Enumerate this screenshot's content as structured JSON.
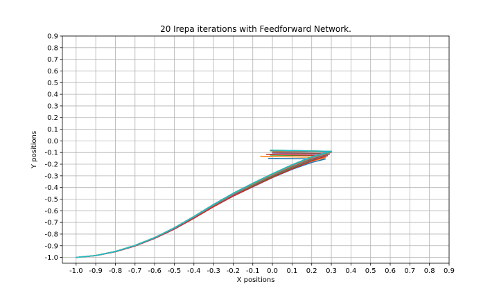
{
  "chart_data": {
    "type": "line",
    "title": "20 Irepa iterations with Feedforward Network.",
    "xlabel": "X positions",
    "ylabel": "Y positions",
    "xlim": [
      -1.07,
      0.9
    ],
    "ylim": [
      -1.05,
      0.9
    ],
    "x_ticks": [
      "-1.0",
      "-0.9",
      "-0.8",
      "-0.7",
      "-0.6",
      "-0.5",
      "-0.4",
      "-0.3",
      "-0.2",
      "-0.1",
      "0.0",
      "0.1",
      "0.2",
      "0.3",
      "0.4",
      "0.5",
      "0.6",
      "0.7",
      "0.8",
      "0.9"
    ],
    "y_ticks": [
      "-1.0",
      "-0.9",
      "-0.8",
      "-0.7",
      "-0.6",
      "-0.5",
      "-0.4",
      "-0.3",
      "-0.2",
      "-0.1",
      "0.0",
      "0.1",
      "0.2",
      "0.3",
      "0.4",
      "0.5",
      "0.6",
      "0.7",
      "0.8",
      "0.9"
    ],
    "grid": true,
    "legend": false,
    "series": [
      {
        "color": "#1f77b4",
        "x": [
          -1.0,
          -0.9,
          -0.8,
          -0.7,
          -0.6,
          -0.5,
          -0.4,
          -0.3,
          -0.2,
          -0.1,
          0.0,
          0.1,
          0.2,
          0.27,
          -0.02
        ],
        "y": [
          -1.0,
          -0.985,
          -0.952,
          -0.903,
          -0.838,
          -0.758,
          -0.665,
          -0.565,
          -0.475,
          -0.395,
          -0.315,
          -0.245,
          -0.185,
          -0.155,
          -0.15
        ]
      },
      {
        "color": "#ff7f0e",
        "x": [
          -1.0,
          -0.9,
          -0.8,
          -0.7,
          -0.6,
          -0.5,
          -0.4,
          -0.3,
          -0.2,
          -0.1,
          0.0,
          0.1,
          0.2,
          0.27,
          -0.06
        ],
        "y": [
          -1.0,
          -0.984,
          -0.951,
          -0.902,
          -0.836,
          -0.755,
          -0.662,
          -0.563,
          -0.471,
          -0.39,
          -0.31,
          -0.238,
          -0.175,
          -0.143,
          -0.132
        ]
      },
      {
        "color": "#2ca02c",
        "x": [
          -1.0,
          -0.9,
          -0.8,
          -0.7,
          -0.6,
          -0.5,
          -0.4,
          -0.3,
          -0.2,
          -0.1,
          0.0,
          0.1,
          0.2,
          0.28,
          -0.01
        ],
        "y": [
          -1.0,
          -0.984,
          -0.95,
          -0.9,
          -0.834,
          -0.753,
          -0.659,
          -0.56,
          -0.468,
          -0.385,
          -0.305,
          -0.232,
          -0.166,
          -0.128,
          -0.122
        ]
      },
      {
        "color": "#d62728",
        "x": [
          -1.0,
          -0.9,
          -0.8,
          -0.7,
          -0.6,
          -0.5,
          -0.4,
          -0.3,
          -0.2,
          -0.1,
          0.0,
          0.1,
          0.2,
          0.28,
          -0.03
        ],
        "y": [
          -1.0,
          -0.985,
          -0.952,
          -0.902,
          -0.837,
          -0.757,
          -0.664,
          -0.566,
          -0.474,
          -0.393,
          -0.313,
          -0.24,
          -0.172,
          -0.126,
          -0.115
        ]
      },
      {
        "color": "#9467bd",
        "x": [
          -1.0,
          -0.9,
          -0.8,
          -0.7,
          -0.6,
          -0.5,
          -0.4,
          -0.3,
          -0.2,
          -0.1,
          0.0,
          0.1,
          0.2,
          0.29,
          0.0
        ],
        "y": [
          -1.0,
          -0.984,
          -0.95,
          -0.899,
          -0.833,
          -0.751,
          -0.656,
          -0.556,
          -0.463,
          -0.379,
          -0.298,
          -0.225,
          -0.158,
          -0.115,
          -0.105
        ]
      },
      {
        "color": "#8c564b",
        "x": [
          -1.0,
          -0.9,
          -0.8,
          -0.7,
          -0.6,
          -0.5,
          -0.4,
          -0.3,
          -0.2,
          -0.1,
          0.0,
          0.1,
          0.2,
          0.29,
          0.0
        ],
        "y": [
          -1.0,
          -0.984,
          -0.95,
          -0.899,
          -0.832,
          -0.75,
          -0.655,
          -0.555,
          -0.461,
          -0.377,
          -0.296,
          -0.222,
          -0.155,
          -0.111,
          -0.1
        ]
      },
      {
        "color": "#e377c2",
        "x": [
          -1.0,
          -0.9,
          -0.8,
          -0.7,
          -0.6,
          -0.5,
          -0.4,
          -0.3,
          -0.2,
          -0.1,
          0.0,
          0.1,
          0.2,
          0.3,
          0.0
        ],
        "y": [
          -1.0,
          -0.984,
          -0.949,
          -0.898,
          -0.831,
          -0.748,
          -0.652,
          -0.551,
          -0.457,
          -0.372,
          -0.29,
          -0.215,
          -0.147,
          -0.1,
          -0.09
        ]
      },
      {
        "color": "#7f7f7f",
        "x": [
          -1.0,
          -0.9,
          -0.8,
          -0.7,
          -0.6,
          -0.5,
          -0.4,
          -0.3,
          -0.2,
          -0.1,
          0.0,
          0.1,
          0.2,
          0.3,
          0.0
        ],
        "y": [
          -1.0,
          -0.984,
          -0.949,
          -0.898,
          -0.831,
          -0.748,
          -0.652,
          -0.551,
          -0.456,
          -0.371,
          -0.289,
          -0.213,
          -0.145,
          -0.098,
          -0.088
        ]
      },
      {
        "color": "#bcbd22",
        "x": [
          -1.0,
          -0.9,
          -0.8,
          -0.7,
          -0.6,
          -0.5,
          -0.4,
          -0.3,
          -0.2,
          -0.1,
          0.0,
          0.1,
          0.2,
          0.3,
          -0.01
        ],
        "y": [
          -1.0,
          -0.984,
          -0.949,
          -0.897,
          -0.83,
          -0.747,
          -0.651,
          -0.549,
          -0.454,
          -0.369,
          -0.287,
          -0.211,
          -0.143,
          -0.096,
          -0.086
        ]
      },
      {
        "color": "#17becf",
        "x": [
          -1.0,
          -0.9,
          -0.8,
          -0.7,
          -0.6,
          -0.5,
          -0.4,
          -0.3,
          -0.2,
          -0.1,
          0.0,
          0.1,
          0.2,
          0.3,
          -0.01
        ],
        "y": [
          -1.0,
          -0.984,
          -0.949,
          -0.897,
          -0.83,
          -0.746,
          -0.65,
          -0.548,
          -0.453,
          -0.367,
          -0.285,
          -0.209,
          -0.141,
          -0.094,
          -0.084
        ]
      },
      {
        "color": "#1f77b4",
        "x": [
          -1.0,
          -0.9,
          -0.8,
          -0.7,
          -0.6,
          -0.5,
          -0.4,
          -0.3,
          -0.2,
          -0.1,
          0.0,
          0.1,
          0.2,
          0.3,
          -0.01
        ],
        "y": [
          -1.0,
          -0.984,
          -0.949,
          -0.897,
          -0.83,
          -0.746,
          -0.649,
          -0.547,
          -0.452,
          -0.366,
          -0.284,
          -0.208,
          -0.14,
          -0.093,
          -0.083
        ]
      },
      {
        "color": "#ff7f0e",
        "x": [
          -1.0,
          -0.9,
          -0.8,
          -0.7,
          -0.6,
          -0.5,
          -0.4,
          -0.3,
          -0.2,
          -0.1,
          0.0,
          0.1,
          0.2,
          0.3,
          -0.01
        ],
        "y": [
          -1.0,
          -0.984,
          -0.949,
          -0.897,
          -0.83,
          -0.746,
          -0.649,
          -0.547,
          -0.452,
          -0.366,
          -0.284,
          -0.208,
          -0.14,
          -0.093,
          -0.083
        ]
      },
      {
        "color": "#2ca02c",
        "x": [
          -1.0,
          -0.9,
          -0.8,
          -0.7,
          -0.6,
          -0.5,
          -0.4,
          -0.3,
          -0.2,
          -0.1,
          0.0,
          0.1,
          0.2,
          0.3,
          -0.01
        ],
        "y": [
          -1.0,
          -0.984,
          -0.949,
          -0.897,
          -0.83,
          -0.746,
          -0.649,
          -0.547,
          -0.451,
          -0.365,
          -0.283,
          -0.207,
          -0.139,
          -0.092,
          -0.082
        ]
      },
      {
        "color": "#d62728",
        "x": [
          -1.0,
          -0.9,
          -0.8,
          -0.7,
          -0.6,
          -0.5,
          -0.4,
          -0.3,
          -0.2,
          -0.1,
          0.0,
          0.1,
          0.2,
          0.3,
          -0.01
        ],
        "y": [
          -1.0,
          -0.984,
          -0.949,
          -0.897,
          -0.83,
          -0.746,
          -0.649,
          -0.547,
          -0.451,
          -0.365,
          -0.283,
          -0.207,
          -0.139,
          -0.092,
          -0.082
        ]
      },
      {
        "color": "#9467bd",
        "x": [
          -1.0,
          -0.9,
          -0.8,
          -0.7,
          -0.6,
          -0.5,
          -0.4,
          -0.3,
          -0.2,
          -0.1,
          0.0,
          0.1,
          0.2,
          0.3,
          -0.01
        ],
        "y": [
          -1.0,
          -0.984,
          -0.949,
          -0.897,
          -0.83,
          -0.746,
          -0.649,
          -0.546,
          -0.45,
          -0.364,
          -0.282,
          -0.206,
          -0.138,
          -0.091,
          -0.081
        ]
      },
      {
        "color": "#8c564b",
        "x": [
          -1.0,
          -0.9,
          -0.8,
          -0.7,
          -0.6,
          -0.5,
          -0.4,
          -0.3,
          -0.2,
          -0.1,
          0.0,
          0.1,
          0.2,
          0.3,
          -0.01
        ],
        "y": [
          -1.0,
          -0.984,
          -0.949,
          -0.897,
          -0.83,
          -0.746,
          -0.649,
          -0.546,
          -0.45,
          -0.364,
          -0.282,
          -0.206,
          -0.138,
          -0.091,
          -0.081
        ]
      },
      {
        "color": "#e377c2",
        "x": [
          -1.0,
          -0.9,
          -0.8,
          -0.7,
          -0.6,
          -0.5,
          -0.4,
          -0.3,
          -0.2,
          -0.1,
          0.0,
          0.1,
          0.2,
          0.3,
          -0.01
        ],
        "y": [
          -1.0,
          -0.984,
          -0.949,
          -0.897,
          -0.83,
          -0.746,
          -0.649,
          -0.546,
          -0.45,
          -0.364,
          -0.282,
          -0.205,
          -0.137,
          -0.09,
          -0.08
        ]
      },
      {
        "color": "#7f7f7f",
        "x": [
          -1.0,
          -0.9,
          -0.8,
          -0.7,
          -0.6,
          -0.5,
          -0.4,
          -0.3,
          -0.2,
          -0.1,
          0.0,
          0.1,
          0.2,
          0.3,
          -0.01
        ],
        "y": [
          -1.0,
          -0.984,
          -0.949,
          -0.897,
          -0.83,
          -0.746,
          -0.649,
          -0.546,
          -0.45,
          -0.364,
          -0.282,
          -0.205,
          -0.137,
          -0.09,
          -0.08
        ]
      },
      {
        "color": "#bcbd22",
        "x": [
          -1.0,
          -0.9,
          -0.8,
          -0.7,
          -0.6,
          -0.5,
          -0.4,
          -0.3,
          -0.2,
          -0.1,
          0.0,
          0.1,
          0.2,
          0.3,
          -0.01
        ],
        "y": [
          -1.0,
          -0.984,
          -0.949,
          -0.897,
          -0.83,
          -0.746,
          -0.649,
          -0.546,
          -0.45,
          -0.364,
          -0.282,
          -0.205,
          -0.137,
          -0.09,
          -0.08
        ]
      },
      {
        "color": "#17becf",
        "x": [
          -1.0,
          -0.9,
          -0.8,
          -0.7,
          -0.6,
          -0.5,
          -0.4,
          -0.3,
          -0.2,
          -0.1,
          0.0,
          0.1,
          0.2,
          0.3,
          -0.01
        ],
        "y": [
          -1.0,
          -0.984,
          -0.949,
          -0.897,
          -0.83,
          -0.746,
          -0.649,
          -0.546,
          -0.45,
          -0.364,
          -0.282,
          -0.205,
          -0.137,
          -0.09,
          -0.08
        ]
      }
    ]
  }
}
